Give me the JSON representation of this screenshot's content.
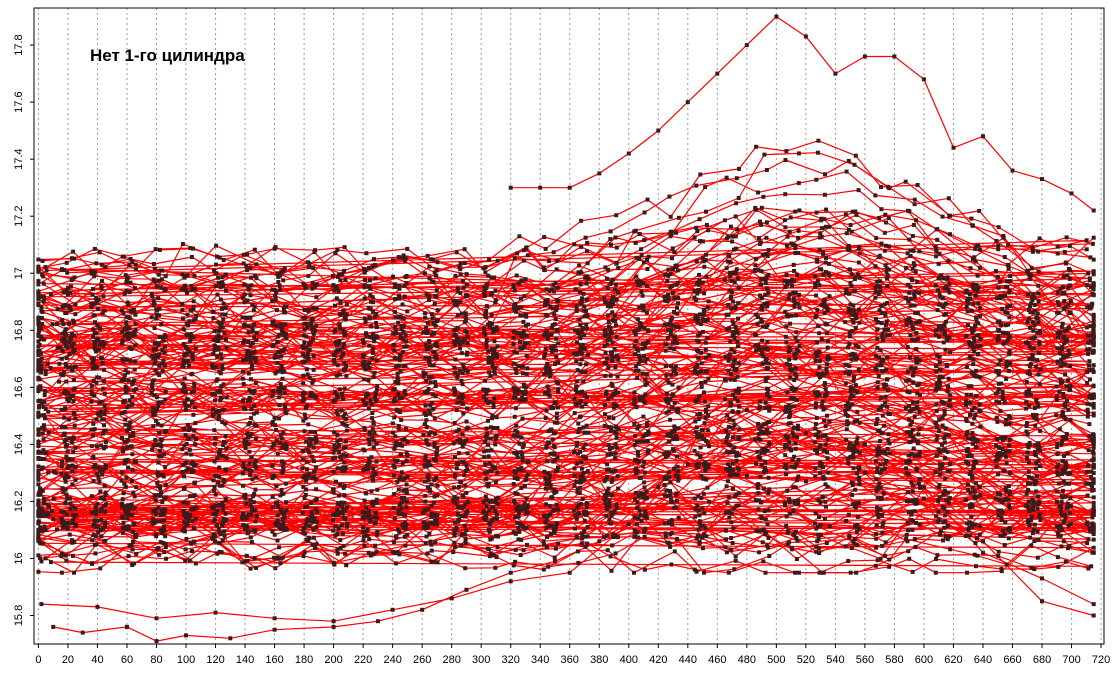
{
  "chart_data": {
    "type": "line",
    "title": "Нет 1-го цилиндра",
    "xlabel": "",
    "ylabel": "",
    "xlim": [
      -3,
      722
    ],
    "ylim": [
      15.7,
      17.93
    ],
    "x_ticks": [
      0,
      20,
      40,
      60,
      80,
      100,
      120,
      140,
      160,
      180,
      200,
      220,
      240,
      260,
      280,
      300,
      320,
      340,
      360,
      380,
      400,
      420,
      440,
      460,
      480,
      500,
      520,
      540,
      560,
      580,
      600,
      620,
      640,
      660,
      680,
      700,
      720
    ],
    "x_tick_labels": [
      "0",
      "20",
      "40",
      "60",
      "80",
      "100",
      "120",
      "140",
      "160",
      "180",
      "200",
      "220",
      "240",
      "260",
      "280",
      "300",
      "320",
      "340",
      "360",
      "380",
      "400",
      "420",
      "440",
      "460",
      "480",
      "500",
      "520",
      "540",
      "560",
      "580",
      "600",
      "620",
      "640",
      "660",
      "680",
      "700",
      "720"
    ],
    "y_ticks": [
      15.8,
      16,
      16.2,
      16.4,
      16.6,
      16.8,
      17,
      17.2,
      17.4,
      17.6,
      17.8
    ],
    "y_tick_labels": [
      "15.8",
      "16",
      "16.2",
      "16.4",
      "16.6",
      "16.8",
      "17",
      "17.2",
      "17.4",
      "17.6",
      "17.8"
    ],
    "grid": {
      "vertical": true,
      "horizontal": false
    },
    "line_color": "#ff0000",
    "marker_color": "#3a1a1a",
    "highlight_series": [
      {
        "x": [
          320,
          340,
          360,
          380,
          400,
          420,
          440,
          460,
          480,
          500,
          520,
          540,
          560,
          580,
          600,
          620,
          640,
          660,
          680,
          700,
          715
        ],
        "y": [
          17.3,
          17.3,
          17.3,
          17.35,
          17.42,
          17.5,
          17.6,
          17.7,
          17.8,
          17.9,
          17.83,
          17.7,
          17.76,
          17.76,
          17.68,
          17.44,
          17.48,
          17.36,
          17.33,
          17.28,
          17.22
        ]
      },
      {
        "x": [
          2,
          40,
          80,
          120,
          160,
          200,
          240,
          280,
          320,
          360,
          400,
          440,
          480,
          520,
          560,
          600,
          640,
          680,
          715
        ],
        "y": [
          15.84,
          15.83,
          15.79,
          15.81,
          15.79,
          15.78,
          15.82,
          15.86,
          15.92,
          15.95,
          16.12,
          16.33,
          16.29,
          16.27,
          16.3,
          16.21,
          16.06,
          15.85,
          15.8
        ]
      },
      {
        "x": [
          10,
          30,
          60,
          80,
          100,
          130,
          160,
          200,
          230,
          260,
          290,
          320,
          350,
          380,
          420,
          450,
          480,
          520,
          560,
          600,
          640,
          680,
          715
        ],
        "y": [
          15.76,
          15.74,
          15.76,
          15.71,
          15.73,
          15.72,
          15.75,
          15.76,
          15.78,
          15.82,
          15.89,
          15.95,
          15.99,
          16.06,
          16.25,
          16.45,
          16.52,
          16.44,
          16.4,
          16.25,
          16.02,
          15.93,
          15.84
        ]
      }
    ],
    "generated_series": {
      "count": 160,
      "seed": 7,
      "n_points": 36,
      "x_start": 0,
      "x_end": 715,
      "note_base_range": [
        16.0,
        17.05
      ]
    }
  }
}
